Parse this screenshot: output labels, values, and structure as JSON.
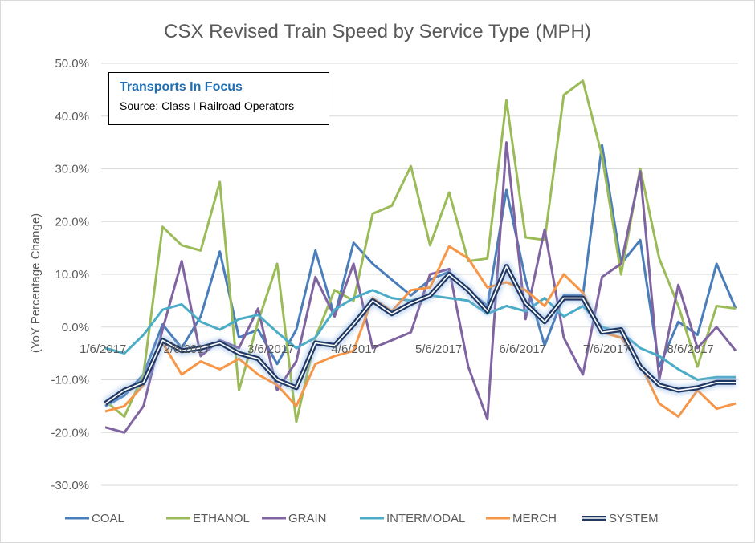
{
  "chart_data": {
    "type": "line",
    "title": "CSX Revised Train Speed by Service Type (MPH)",
    "ylabel": "(YoY Percentage Change)",
    "xlabel": "",
    "ylim": [
      -0.3,
      0.5
    ],
    "yticks": [
      "50.0%",
      "40.0%",
      "30.0%",
      "20.0%",
      "10.0%",
      "0.0%",
      "-10.0%",
      "-20.0%",
      "-30.0%"
    ],
    "x_tick_labels": [
      "1/6/2017",
      "2/6/2017",
      "3/6/2017",
      "4/6/2017",
      "5/6/2017",
      "6/6/2017",
      "7/6/2017",
      "8/6/2017"
    ],
    "grid": true,
    "legend_position": "bottom",
    "note": {
      "title": "Transports In Focus",
      "source": "Source: Class I Railroad Operators"
    },
    "series": [
      {
        "name": "COAL",
        "color": "#4a7ebb",
        "values": [
          -0.15,
          -0.13,
          -0.09,
          0.005,
          -0.04,
          0.02,
          0.143,
          -0.02,
          -0.005,
          -0.07,
          -0.005,
          0.145,
          0.02,
          0.16,
          0.12,
          0.09,
          0.06,
          0.09,
          0.105,
          0.07,
          0.04,
          0.26,
          0.09,
          -0.035,
          0.06,
          0.06,
          0.345,
          0.12,
          0.165,
          -0.075,
          0.01,
          -0.015,
          0.12,
          0.035
        ]
      },
      {
        "name": "ETHANOL",
        "color": "#9bbb59",
        "values": [
          -0.14,
          -0.17,
          -0.09,
          0.19,
          0.155,
          0.145,
          0.275,
          -0.12,
          0.01,
          0.12,
          -0.18,
          -0.02,
          0.07,
          0.05,
          0.215,
          0.23,
          0.305,
          0.155,
          0.255,
          0.125,
          0.13,
          0.43,
          0.17,
          0.165,
          0.44,
          0.467,
          0.325,
          0.1,
          0.3,
          0.13,
          0.04,
          -0.075,
          0.04,
          0.035
        ]
      },
      {
        "name": "GRAIN",
        "color": "#8064a2",
        "values": [
          -0.19,
          -0.2,
          -0.15,
          -0.005,
          0.125,
          -0.055,
          -0.025,
          -0.04,
          0.035,
          -0.12,
          -0.065,
          0.095,
          0.02,
          0.12,
          -0.04,
          -0.025,
          -0.01,
          0.1,
          0.11,
          -0.075,
          -0.175,
          0.35,
          0.015,
          0.185,
          -0.02,
          -0.09,
          0.095,
          0.12,
          0.295,
          -0.1,
          0.08,
          -0.04,
          0.0,
          -0.045
        ]
      },
      {
        "name": "INTERMODAL",
        "color": "#4bacc6",
        "values": [
          -0.04,
          -0.05,
          -0.015,
          0.033,
          0.043,
          0.01,
          -0.005,
          0.015,
          0.023,
          -0.01,
          -0.04,
          -0.02,
          0.033,
          0.055,
          0.07,
          0.055,
          0.05,
          0.06,
          0.055,
          0.05,
          0.025,
          0.04,
          0.03,
          0.055,
          0.02,
          0.04,
          0.0,
          -0.01,
          -0.04,
          -0.055,
          -0.08,
          -0.1,
          -0.095,
          -0.095
        ]
      },
      {
        "name": "MERCH",
        "color": "#f79646",
        "values": [
          -0.16,
          -0.15,
          -0.11,
          -0.03,
          -0.09,
          -0.065,
          -0.08,
          -0.06,
          -0.09,
          -0.11,
          -0.15,
          -0.07,
          -0.055,
          -0.045,
          0.055,
          0.03,
          0.07,
          0.075,
          0.153,
          0.13,
          0.075,
          0.085,
          0.07,
          0.04,
          0.1,
          0.065,
          -0.01,
          -0.02,
          -0.07,
          -0.145,
          -0.17,
          -0.12,
          -0.155,
          -0.145
        ]
      },
      {
        "name": "SYSTEM",
        "color": "#1f3864",
        "values": [
          -0.145,
          -0.12,
          -0.105,
          -0.025,
          -0.045,
          -0.04,
          -0.03,
          -0.05,
          -0.06,
          -0.1,
          -0.115,
          -0.03,
          -0.035,
          0.005,
          0.05,
          0.025,
          0.045,
          0.06,
          0.1,
          0.07,
          0.03,
          0.115,
          0.045,
          0.01,
          0.055,
          0.055,
          -0.01,
          -0.005,
          -0.075,
          -0.11,
          -0.12,
          -0.115,
          -0.105,
          -0.105
        ]
      }
    ]
  }
}
